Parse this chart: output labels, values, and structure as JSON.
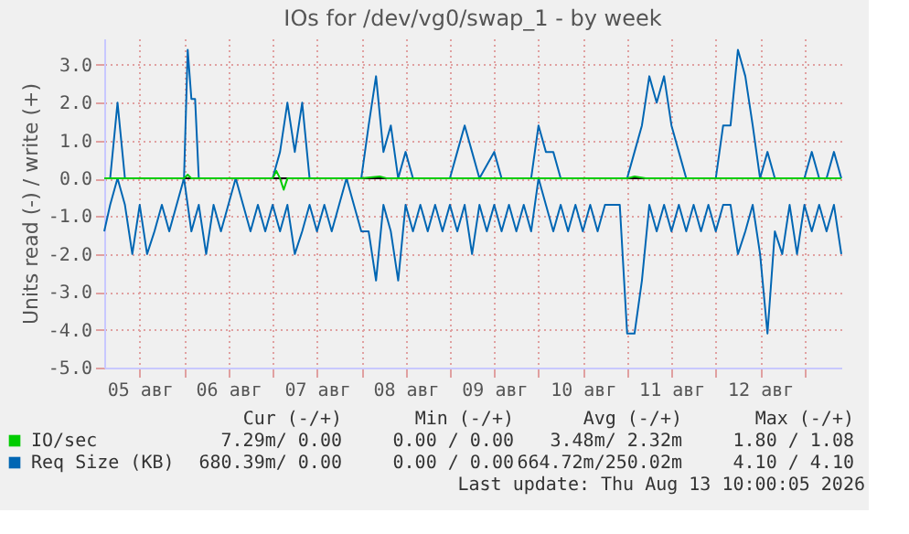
{
  "chart_data": {
    "type": "line",
    "title": "IOs for /dev/vg0/swap_1 - by week",
    "ylabel": "Units read (-) / write (+)",
    "xlim": [
      "2026-08-05T02:24",
      "2026-08-13T10:00"
    ],
    "xticks": [
      {
        "value": "2026-08-05T12:00",
        "label": "05 авг"
      },
      {
        "value": "2026-08-06T00:00",
        "label": null
      },
      {
        "value": "2026-08-06T12:00",
        "label": "06 авг"
      },
      {
        "value": "2026-08-07T00:00",
        "label": null
      },
      {
        "value": "2026-08-07T12:00",
        "label": "07 авг"
      },
      {
        "value": "2026-08-08T00:00",
        "label": null
      },
      {
        "value": "2026-08-08T12:00",
        "label": "08 авг"
      },
      {
        "value": "2026-08-09T00:00",
        "label": null
      },
      {
        "value": "2026-08-09T12:00",
        "label": "09 авг"
      },
      {
        "value": "2026-08-10T00:00",
        "label": null
      },
      {
        "value": "2026-08-10T12:00",
        "label": "10 авг"
      },
      {
        "value": "2026-08-11T00:00",
        "label": null
      },
      {
        "value": "2026-08-11T12:00",
        "label": "11 авг"
      },
      {
        "value": "2026-08-12T00:00",
        "label": null
      },
      {
        "value": "2026-08-12T12:00",
        "label": "12 авг"
      },
      {
        "value": "2026-08-13T00:00",
        "label": null
      }
    ],
    "ylim": [
      -5,
      3.7
    ],
    "yticks": [
      {
        "value": -5,
        "label": "-5.0"
      },
      {
        "value": -4,
        "label": "-4.0"
      },
      {
        "value": -3,
        "label": "-3.0"
      },
      {
        "value": -2,
        "label": "-2.0"
      },
      {
        "value": -1,
        "label": "-1.0"
      },
      {
        "value": 0,
        "label": "0.0"
      },
      {
        "value": 1,
        "label": "1.0"
      },
      {
        "value": 2,
        "label": "2.0"
      },
      {
        "value": 3,
        "label": "3.0"
      }
    ],
    "grid": true,
    "legend": "bottom",
    "line_style": "solid",
    "marker": "none",
    "ref_lines": [
      {
        "axis": "y",
        "value": 0,
        "color": "#000000"
      }
    ],
    "series": [
      {
        "name": "IO/sec",
        "color": "#00cc00",
        "x": [
          "2026-08-05T02:24",
          "2026-08-06T00:00",
          "2026-08-06T01:00",
          "2026-08-06T02:00",
          "2026-08-07T00:00",
          "2026-08-07T01:00",
          "2026-08-07T02:00",
          "2026-08-07T03:00",
          "2026-08-07T04:00",
          "2026-08-08T00:00",
          "2026-08-08T05:00",
          "2026-08-08T07:00",
          "2026-08-11T00:00",
          "2026-08-11T02:00",
          "2026-08-11T05:00",
          "2026-08-13T10:00"
        ],
        "values": [
          0,
          0,
          0.1,
          0,
          0,
          0.2,
          0,
          -0.3,
          0,
          0,
          0.05,
          0,
          0,
          0.05,
          0,
          0
        ]
      },
      {
        "name": "Req Size (KB)",
        "color": "#0066b3",
        "x": [
          "2026-08-05T02:24",
          "2026-08-05T04:00",
          "2026-08-05T06:00",
          "2026-08-05T08:00",
          "2026-08-05T10:00",
          "2026-08-05T12:00",
          "2026-08-05T14:00",
          "2026-08-05T16:00",
          "2026-08-05T18:00",
          "2026-08-05T20:00",
          "2026-08-05T22:00",
          "2026-08-06T00:00",
          "2026-08-06T02:00",
          "2026-08-06T04:00",
          "2026-08-06T06:00",
          "2026-08-06T08:00",
          "2026-08-06T10:00",
          "2026-08-06T12:00",
          "2026-08-06T14:00",
          "2026-08-06T16:00",
          "2026-08-06T18:00",
          "2026-08-06T20:00",
          "2026-08-06T22:00",
          "2026-08-07T00:00",
          "2026-08-07T02:00",
          "2026-08-07T04:00",
          "2026-08-07T06:00",
          "2026-08-07T08:00",
          "2026-08-07T10:00",
          "2026-08-07T12:00",
          "2026-08-07T14:00",
          "2026-08-07T16:00",
          "2026-08-07T18:00",
          "2026-08-07T20:00",
          "2026-08-07T22:00",
          "2026-08-08T00:00",
          "2026-08-08T02:00",
          "2026-08-08T04:00",
          "2026-08-08T06:00",
          "2026-08-08T08:00",
          "2026-08-08T10:00",
          "2026-08-08T12:00",
          "2026-08-08T14:00",
          "2026-08-08T16:00",
          "2026-08-08T18:00",
          "2026-08-08T20:00",
          "2026-08-08T22:00",
          "2026-08-09T00:00",
          "2026-08-09T02:00",
          "2026-08-09T04:00",
          "2026-08-09T06:00",
          "2026-08-09T08:00",
          "2026-08-09T10:00",
          "2026-08-09T12:00",
          "2026-08-09T14:00",
          "2026-08-09T16:00",
          "2026-08-09T18:00",
          "2026-08-09T20:00",
          "2026-08-09T22:00",
          "2026-08-10T00:00",
          "2026-08-10T02:00",
          "2026-08-10T04:00",
          "2026-08-10T06:00",
          "2026-08-10T08:00",
          "2026-08-10T10:00",
          "2026-08-10T12:00",
          "2026-08-10T14:00",
          "2026-08-10T16:00",
          "2026-08-10T18:00",
          "2026-08-10T20:00",
          "2026-08-10T22:00",
          "2026-08-11T00:00",
          "2026-08-11T02:00",
          "2026-08-11T04:00",
          "2026-08-11T06:00",
          "2026-08-11T08:00",
          "2026-08-11T10:00",
          "2026-08-11T12:00",
          "2026-08-11T14:00",
          "2026-08-11T16:00",
          "2026-08-11T18:00",
          "2026-08-11T20:00",
          "2026-08-11T22:00",
          "2026-08-12T00:00",
          "2026-08-12T02:00",
          "2026-08-12T04:00",
          "2026-08-12T06:00",
          "2026-08-12T08:00",
          "2026-08-12T10:00",
          "2026-08-12T12:00",
          "2026-08-12T14:00",
          "2026-08-12T16:00",
          "2026-08-12T18:00",
          "2026-08-12T20:00",
          "2026-08-12T22:00",
          "2026-08-13T00:00",
          "2026-08-13T02:00",
          "2026-08-13T04:00",
          "2026-08-13T06:00",
          "2026-08-13T08:00",
          "2026-08-13T10:00"
        ],
        "values": [
          -1.4,
          -0.7,
          0,
          -0.7,
          -2.0,
          -0.7,
          -2.0,
          -1.4,
          -0.7,
          -1.4,
          -0.7,
          0,
          -1.4,
          -0.7,
          -2.0,
          -0.7,
          -1.4,
          -0.7,
          0,
          -0.7,
          -1.4,
          -0.7,
          -1.4,
          -0.7,
          -1.4,
          -0.7,
          -2.0,
          -1.4,
          -0.7,
          -1.4,
          -0.7,
          -1.4,
          -0.7,
          0,
          -0.7,
          -1.4,
          -1.4,
          -2.7,
          -0.7,
          -1.4,
          -2.7,
          -0.7,
          -1.4,
          -0.7,
          -1.4,
          -0.7,
          -1.4,
          -0.7,
          -1.4,
          -0.7,
          -2.0,
          -0.7,
          -1.4,
          -0.7,
          -1.4,
          -0.7,
          -1.4,
          -0.7,
          -1.4,
          0,
          -0.7,
          -1.4,
          -0.7,
          -1.4,
          -0.7,
          -1.4,
          -0.7,
          -1.4,
          -0.7,
          -0.7,
          -0.7,
          -4.1,
          -4.1,
          -2.7,
          -0.7,
          -1.4,
          -0.7,
          -1.4,
          -0.7,
          -1.4,
          -0.7,
          -1.4,
          -0.7,
          -1.4,
          -0.7,
          -0.7,
          -2.0,
          -1.4,
          -0.7,
          -2.0,
          -4.1,
          -1.4,
          -2.0,
          -0.7,
          -2.0,
          -0.7,
          -1.4,
          -0.7,
          -1.4,
          -0.7,
          -2.0
        ]
      },
      {
        "color": "#0066b3",
        "x": [
          "2026-08-05T02:24",
          "2026-08-05T04:00",
          "2026-08-05T06:00",
          "2026-08-05T08:00",
          "2026-08-06T00:00",
          "2026-08-06T01:00",
          "2026-08-06T02:00",
          "2026-08-06T03:00",
          "2026-08-06T04:00",
          "2026-08-07T00:00",
          "2026-08-07T02:00",
          "2026-08-07T04:00",
          "2026-08-07T06:00",
          "2026-08-07T08:00",
          "2026-08-07T10:00",
          "2026-08-08T00:00",
          "2026-08-08T02:00",
          "2026-08-08T04:00",
          "2026-08-08T06:00",
          "2026-08-08T08:00",
          "2026-08-08T10:00",
          "2026-08-08T12:00",
          "2026-08-08T14:00",
          "2026-08-09T00:00",
          "2026-08-09T02:00",
          "2026-08-09T04:00",
          "2026-08-09T06:00",
          "2026-08-09T08:00",
          "2026-08-09T12:00",
          "2026-08-09T14:00",
          "2026-08-09T22:00",
          "2026-08-10T00:00",
          "2026-08-10T02:00",
          "2026-08-10T04:00",
          "2026-08-10T06:00",
          "2026-08-11T00:00",
          "2026-08-11T02:00",
          "2026-08-11T04:00",
          "2026-08-11T06:00",
          "2026-08-11T08:00",
          "2026-08-11T10:00",
          "2026-08-11T12:00",
          "2026-08-11T14:00",
          "2026-08-11T16:00",
          "2026-08-12T00:00",
          "2026-08-12T02:00",
          "2026-08-12T04:00",
          "2026-08-12T06:00",
          "2026-08-12T08:00",
          "2026-08-12T10:00",
          "2026-08-12T12:00",
          "2026-08-12T14:00",
          "2026-08-12T16:00",
          "2026-08-13T00:00",
          "2026-08-13T02:00",
          "2026-08-13T04:00",
          "2026-08-13T06:00",
          "2026-08-13T08:00",
          "2026-08-13T10:00"
        ],
        "values": [
          0,
          0,
          2.0,
          0,
          0,
          3.4,
          2.1,
          2.1,
          0,
          0,
          0.7,
          2.0,
          0.7,
          2.0,
          0,
          0,
          1.4,
          2.7,
          0.7,
          1.4,
          0,
          0.7,
          0,
          0,
          0.7,
          1.4,
          0.7,
          0,
          0.7,
          0,
          0,
          1.4,
          0.7,
          0.7,
          0,
          0,
          0.7,
          1.4,
          2.7,
          2.0,
          2.7,
          1.4,
          0.7,
          0,
          0,
          1.4,
          1.4,
          3.4,
          2.7,
          1.4,
          0,
          0.7,
          0,
          0,
          0.7,
          0,
          0,
          0.7,
          0
        ]
      }
    ],
    "annotations": [
      "Cur (-/+)",
      "Min (-/+)",
      "Avg (-/+)",
      "Max (-/+)",
      "7.29m/ 0.00",
      "0.00 / 0.00",
      "3.48m/ 2.32m",
      "1.80 / 1.08",
      "680.39m/ 0.00",
      "0.00 / 0.00",
      "664.72m/250.02m",
      "4.10 / 4.10",
      "Last update: Thu Aug 13 10:00:05 2026"
    ]
  }
}
